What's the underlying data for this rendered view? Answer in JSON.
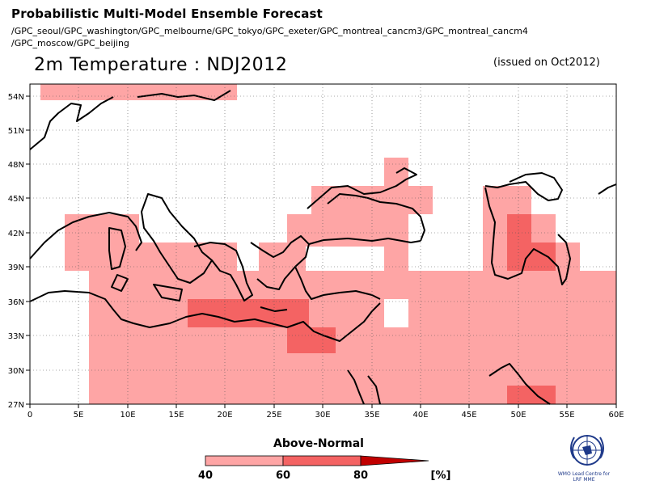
{
  "header": {
    "title": "Probabilistic Multi-Model Ensemble Forecast",
    "models_line1": "/GPC_seoul/GPC_washington/GPC_melbourne/GPC_tokyo/GPC_exeter/GPC_montreal_cancm3/GPC_montreal_cancm4",
    "models_line2": "/GPC_moscow/GPC_beijing",
    "map_title": "2m Temperature : NDJ2012",
    "issued": "(issued on Oct2012)"
  },
  "map": {
    "lon_range": [
      0,
      60
    ],
    "lat_range": [
      27,
      55
    ],
    "lon_ticks": [
      "0",
      "5E",
      "10E",
      "15E",
      "20E",
      "25E",
      "30E",
      "35E",
      "40E",
      "45E",
      "50E",
      "55E",
      "60E"
    ],
    "lat_ticks": [
      "54N",
      "51N",
      "48N",
      "45N",
      "42N",
      "39N",
      "36N",
      "33N",
      "30N",
      "27N"
    ],
    "grid": "dotted",
    "colors": {
      "light": "#fea5a5",
      "medium": "#f46363",
      "dark": "#c10000",
      "coast": "#000000"
    }
  },
  "legend": {
    "title": "Above-Normal",
    "ticks": [
      "40",
      "60",
      "80"
    ],
    "unit": "[%]",
    "colors": [
      "#fea5a5",
      "#f46363",
      "#c10000"
    ]
  },
  "logo": {
    "line1": "WMO Lead Centre for",
    "line2": "LRF MME"
  }
}
